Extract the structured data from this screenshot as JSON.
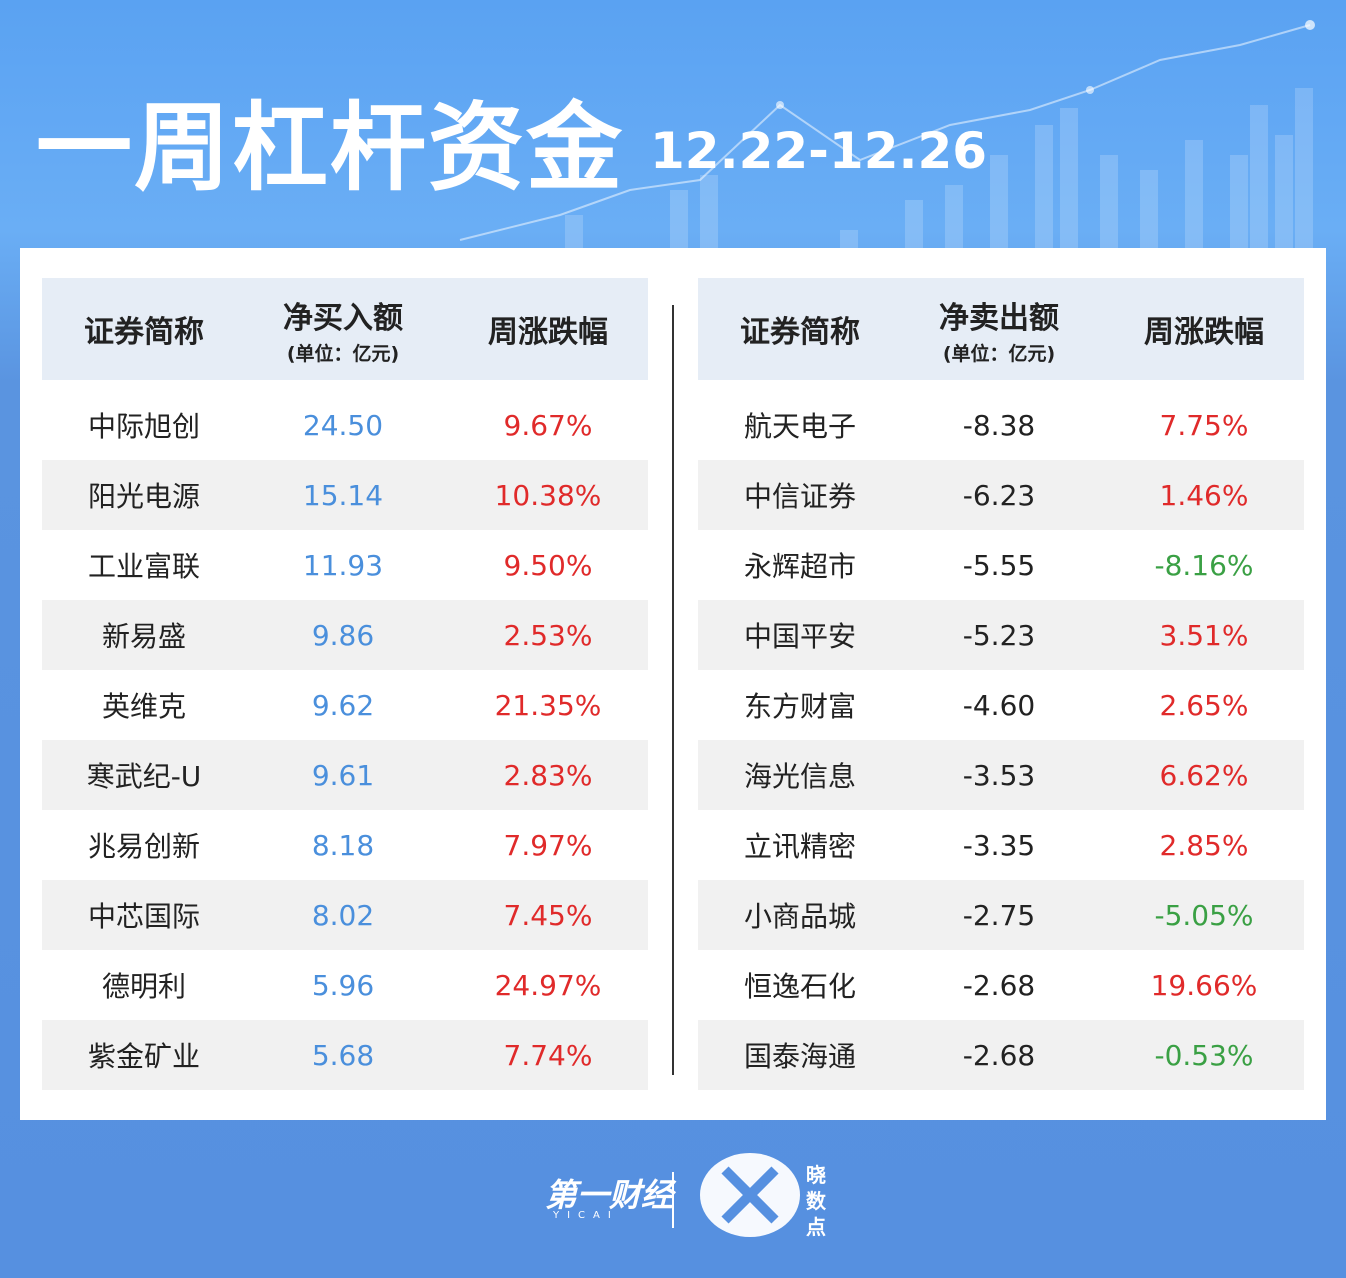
{
  "header": {
    "title": "一周杠杆资金",
    "date": "12.22-12.26"
  },
  "tables": [
    {
      "columns": [
        "证券简称",
        {
          "main": "净买入额",
          "sub": "(单位：亿元)"
        },
        "周涨跌幅"
      ],
      "rows": [
        [
          "中际旭创",
          "24.50",
          "9.67%"
        ],
        [
          "阳光电源",
          "15.14",
          "10.38%"
        ],
        [
          "工业富联",
          "11.93",
          "9.50%"
        ],
        [
          "新易盛",
          "9.86",
          "2.53%"
        ],
        [
          "英维克",
          "9.62",
          "21.35%"
        ],
        [
          "寒武纪-U",
          "9.61",
          "2.83%"
        ],
        [
          "兆易创新",
          "8.18",
          "7.97%"
        ],
        [
          "中芯国际",
          "8.02",
          "7.45%"
        ],
        [
          "德明利",
          "5.96",
          "24.97%"
        ],
        [
          "紫金矿业",
          "5.68",
          "7.74%"
        ]
      ]
    },
    {
      "columns": [
        "证券简称",
        {
          "main": "净卖出额",
          "sub": "(单位：亿元)"
        },
        "周涨跌幅"
      ],
      "rows": [
        [
          "航天电子",
          "-8.38",
          "7.75%"
        ],
        [
          "中信证券",
          "-6.23",
          "1.46%"
        ],
        [
          "永辉超市",
          "-5.55",
          "-8.16%"
        ],
        [
          "中国平安",
          "-5.23",
          "3.51%"
        ],
        [
          "东方财富",
          "-4.60",
          "2.65%"
        ],
        [
          "海光信息",
          "-3.53",
          "6.62%"
        ],
        [
          "立讯精密",
          "-3.35",
          "2.85%"
        ],
        [
          "小商品城",
          "-2.75",
          "-5.05%"
        ],
        [
          "恒逸石化",
          "-2.68",
          "19.66%"
        ],
        [
          "国泰海通",
          "-2.68",
          "-0.53%"
        ]
      ]
    }
  ],
  "footer": {
    "brand": "第一财经",
    "brand_sub": "YICAI",
    "brand2": "晓数点"
  }
}
